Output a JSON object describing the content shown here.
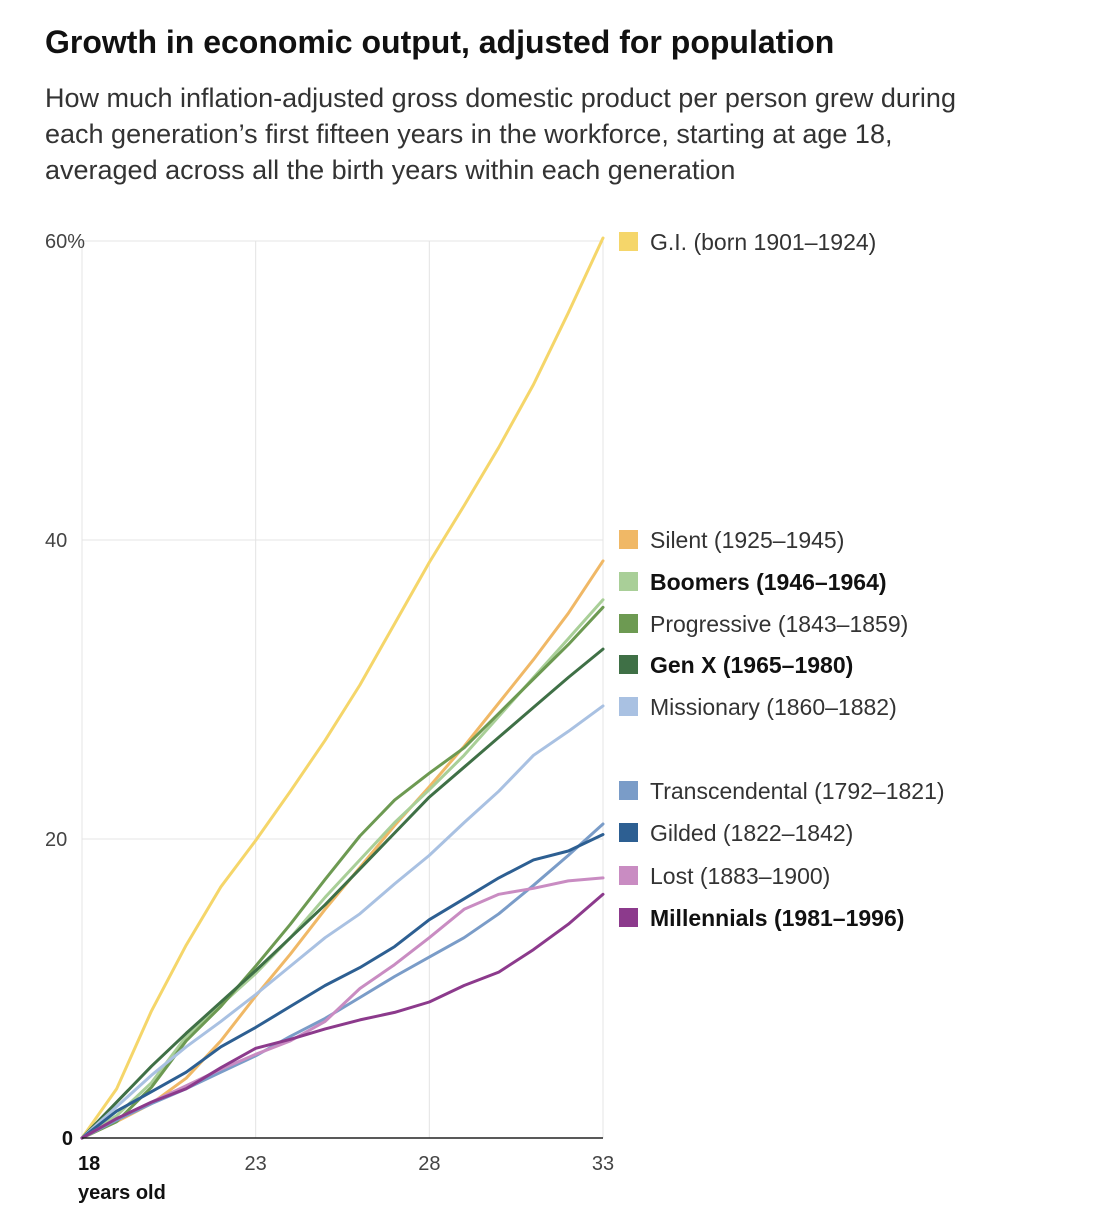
{
  "header": {
    "title": "Growth in economic output, adjusted for population",
    "subtitle": "How much inflation-adjusted gross domestic product per person grew during each generation’s first fifteen years in the workforce, starting at age 18, averaged across all the birth years within each generation"
  },
  "chart_data": {
    "type": "line",
    "title": "Growth in economic output, adjusted for population",
    "xlabel": "years old",
    "ylabel": "",
    "x": [
      18,
      19,
      20,
      21,
      22,
      23,
      24,
      25,
      26,
      27,
      28,
      29,
      30,
      31,
      32,
      33
    ],
    "xlim": [
      18,
      33
    ],
    "ylim": [
      0,
      60
    ],
    "x_ticks": [
      {
        "value": 18,
        "label": "18"
      },
      {
        "value": 23,
        "label": "23"
      },
      {
        "value": 28,
        "label": "28"
      },
      {
        "value": 33,
        "label": "33"
      }
    ],
    "y_ticks": [
      {
        "value": 0,
        "label": "0"
      },
      {
        "value": 20,
        "label": "20"
      },
      {
        "value": 40,
        "label": "40"
      },
      {
        "value": 60,
        "label": "60%"
      }
    ],
    "x_sublabel": "years old",
    "grid": true,
    "legend_placement": "right",
    "series": [
      {
        "name": "G.I. (born 1901–1924)",
        "color": "#f5d66a",
        "bold": false,
        "values": [
          0,
          3.3,
          8.5,
          12.9,
          16.8,
          19.9,
          23.2,
          26.6,
          30.3,
          34.4,
          38.5,
          42.3,
          46.2,
          50.4,
          55.2,
          60.2
        ]
      },
      {
        "name": "Silent (1925–1945)",
        "color": "#f0b866",
        "bold": false,
        "values": [
          0,
          1.1,
          2.3,
          4.0,
          6.5,
          9.5,
          12.3,
          15.3,
          18.1,
          20.9,
          23.5,
          26.2,
          29.1,
          32.0,
          35.1,
          38.6
        ]
      },
      {
        "name": "Boomers (1946–1964)",
        "color": "#a9cf98",
        "bold": true,
        "values": [
          0,
          1.5,
          3.7,
          6.8,
          8.9,
          11.0,
          13.4,
          16.1,
          18.6,
          21.1,
          23.3,
          25.6,
          28.2,
          30.8,
          33.4,
          36.0
        ]
      },
      {
        "name": "Progressive (1843–1859)",
        "color": "#6d9a52",
        "bold": false,
        "values": [
          0,
          1.1,
          3.4,
          6.5,
          8.8,
          11.5,
          14.3,
          17.3,
          20.2,
          22.6,
          24.4,
          26.1,
          28.4,
          30.7,
          33.0,
          35.5
        ]
      },
      {
        "name": "Gen X (1965–1980)",
        "color": "#3f7046",
        "bold": true,
        "values": [
          0,
          2.4,
          4.8,
          7.0,
          9.1,
          11.2,
          13.4,
          15.6,
          18.0,
          20.4,
          22.8,
          24.8,
          26.8,
          28.8,
          30.8,
          32.7
        ]
      },
      {
        "name": "Missionary (1860–1882)",
        "color": "#a9c1e2",
        "bold": false,
        "values": [
          0,
          2.1,
          4.2,
          6.1,
          7.8,
          9.6,
          11.5,
          13.4,
          15.0,
          17.0,
          18.9,
          21.1,
          23.2,
          25.6,
          27.2,
          28.9
        ]
      },
      {
        "name": "Transcendental (1792–1821)",
        "color": "#7a9cc8",
        "bold": false,
        "values": [
          0,
          1.2,
          2.3,
          3.3,
          4.4,
          5.5,
          6.8,
          8.0,
          9.4,
          10.8,
          12.1,
          13.4,
          15.0,
          16.9,
          18.9,
          21.0
        ]
      },
      {
        "name": "Gilded (1822–1842)",
        "color": "#2d5f92",
        "bold": false,
        "values": [
          0,
          1.8,
          3.1,
          4.4,
          6.1,
          7.4,
          8.8,
          10.2,
          11.4,
          12.8,
          14.6,
          16.0,
          17.4,
          18.6,
          19.2,
          20.3
        ]
      },
      {
        "name": "Lost (1883–1900)",
        "color": "#c98cc2",
        "bold": false,
        "values": [
          0,
          1.3,
          2.4,
          3.5,
          4.6,
          5.6,
          6.5,
          7.8,
          10.0,
          11.6,
          13.4,
          15.3,
          16.3,
          16.7,
          17.2,
          17.4
        ]
      },
      {
        "name": "Millennials (1981–1996)",
        "color": "#8c3a8c",
        "bold": true,
        "values": [
          0,
          1.3,
          2.4,
          3.3,
          4.7,
          6.0,
          6.6,
          7.3,
          7.9,
          8.4,
          9.1,
          10.2,
          11.1,
          12.6,
          14.3,
          16.3
        ]
      }
    ]
  }
}
